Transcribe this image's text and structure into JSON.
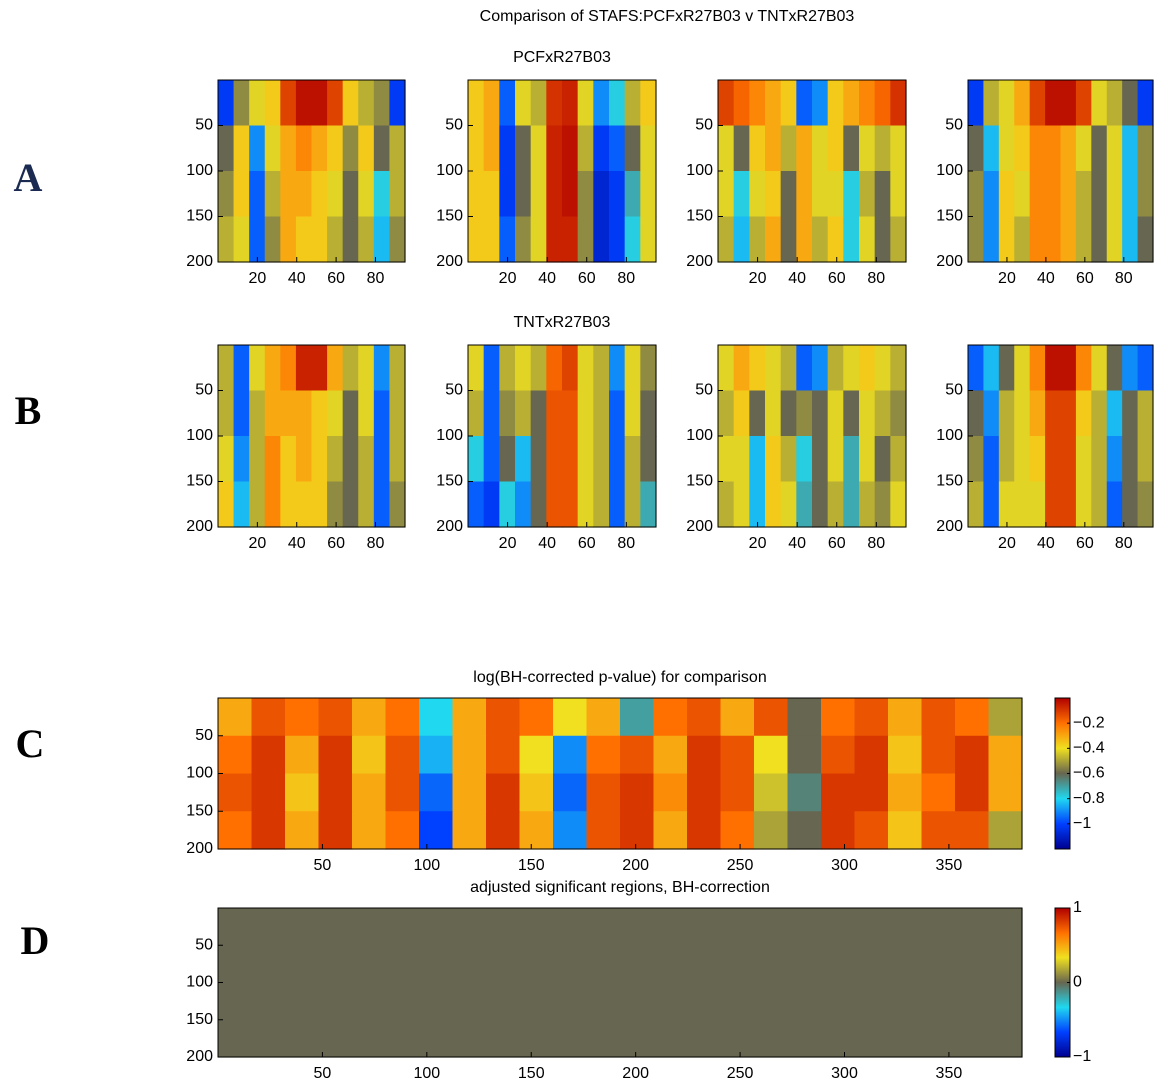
{
  "title": "Comparison of STAFS:PCFxR27B03 v TNTxR27B03",
  "row_titles": [
    "PCFxR27B03",
    "TNTxR27B03"
  ],
  "panel_labels": [
    "A",
    "B",
    "C",
    "D"
  ],
  "colormap": [
    "#00008f",
    "#0040ff",
    "#20d8f0",
    "#676650",
    "#f0e020",
    "#ff7000",
    "#b00000"
  ],
  "chart_data": [
    {
      "type": "heatmap",
      "xlim": [
        0,
        95
      ],
      "ylim": [
        0,
        200
      ],
      "y_inverted": true,
      "clim": [
        -1,
        1
      ],
      "xticks": [
        20,
        40,
        60,
        80
      ],
      "yticks": [
        50,
        100,
        150,
        200
      ],
      "values": [
        [
          -0.7,
          0.1,
          0.3,
          0.4,
          0.8,
          0.95,
          0.95,
          0.8,
          0.4,
          0.2,
          0.1,
          -0.7
        ],
        [
          0,
          0.4,
          -0.5,
          0.3,
          0.5,
          0.6,
          0.5,
          0.4,
          0.1,
          0.4,
          0,
          0.2
        ],
        [
          0.1,
          0.4,
          -0.6,
          0.2,
          0.5,
          0.5,
          0.4,
          0.3,
          0,
          0.3,
          -0.3,
          0.2
        ],
        [
          0.2,
          0.3,
          -0.6,
          0.1,
          0.5,
          0.4,
          0.4,
          0.2,
          0,
          0.2,
          -0.4,
          0.1
        ]
      ]
    },
    {
      "type": "heatmap",
      "xlim": [
        0,
        95
      ],
      "ylim": [
        0,
        200
      ],
      "y_inverted": true,
      "clim": [
        -1,
        1
      ],
      "xticks": [
        20,
        40,
        60,
        80
      ],
      "yticks": [
        50,
        100,
        150,
        200
      ],
      "values": [
        [
          0.4,
          0.5,
          -0.6,
          0.3,
          0.2,
          0.85,
          0.9,
          0.3,
          -0.5,
          -0.3,
          0.2,
          0.4
        ],
        [
          0.4,
          0.5,
          -0.7,
          0,
          0.3,
          0.9,
          0.95,
          0.2,
          -0.7,
          -0.6,
          0,
          0.3
        ],
        [
          0.4,
          0.4,
          -0.7,
          0,
          0.3,
          0.9,
          0.95,
          0.1,
          -0.8,
          -0.7,
          -0.2,
          0.3
        ],
        [
          0.4,
          0.4,
          -0.6,
          0.1,
          0.3,
          0.9,
          0.9,
          0.1,
          -0.8,
          -0.7,
          -0.3,
          0.3
        ]
      ]
    },
    {
      "type": "heatmap",
      "xlim": [
        0,
        95
      ],
      "ylim": [
        0,
        200
      ],
      "y_inverted": true,
      "clim": [
        -1,
        1
      ],
      "xticks": [
        20,
        40,
        60,
        80
      ],
      "yticks": [
        50,
        100,
        150,
        200
      ],
      "values": [
        [
          0.8,
          0.7,
          0.6,
          0.5,
          0.4,
          -0.6,
          -0.5,
          0.4,
          0.5,
          0.6,
          0.7,
          0.85
        ],
        [
          0.3,
          0,
          0.4,
          0.5,
          0.2,
          0.5,
          0.3,
          0.4,
          0,
          0.3,
          0.2,
          0.3
        ],
        [
          0.3,
          -0.3,
          0.3,
          0.4,
          0,
          0.5,
          0.3,
          0.3,
          -0.3,
          0.2,
          0,
          0.3
        ],
        [
          0.2,
          -0.4,
          0.2,
          0.5,
          0,
          0.5,
          0.2,
          0.4,
          -0.3,
          0.3,
          0,
          0.2
        ]
      ]
    },
    {
      "type": "heatmap",
      "xlim": [
        0,
        95
      ],
      "ylim": [
        0,
        200
      ],
      "y_inverted": true,
      "clim": [
        -1,
        1
      ],
      "xticks": [
        20,
        40,
        60,
        80
      ],
      "yticks": [
        50,
        100,
        150,
        200
      ],
      "values": [
        [
          -0.7,
          0.2,
          0.3,
          0.5,
          0.8,
          0.95,
          0.95,
          0.8,
          0.3,
          0.2,
          0,
          -0.7
        ],
        [
          0,
          -0.4,
          0.3,
          0.4,
          0.6,
          0.6,
          0.5,
          0.3,
          0,
          0.3,
          -0.4,
          0.1
        ],
        [
          0.1,
          -0.5,
          0.4,
          0.3,
          0.6,
          0.6,
          0.5,
          0.2,
          0,
          0.3,
          -0.4,
          0.1
        ],
        [
          0.1,
          -0.5,
          0.4,
          0.2,
          0.6,
          0.6,
          0.5,
          0.2,
          0,
          0.3,
          -0.4,
          0
        ]
      ]
    },
    {
      "type": "heatmap",
      "xlim": [
        0,
        95
      ],
      "ylim": [
        0,
        200
      ],
      "y_inverted": true,
      "clim": [
        -1,
        1
      ],
      "xticks": [
        20,
        40,
        60,
        80
      ],
      "yticks": [
        50,
        100,
        150,
        200
      ],
      "values": [
        [
          0.2,
          -0.6,
          0.3,
          0.5,
          0.6,
          0.9,
          0.9,
          0.5,
          0.2,
          0.3,
          -0.5,
          0.2
        ],
        [
          0.2,
          -0.6,
          0.2,
          0.5,
          0.5,
          0.5,
          0.4,
          0.3,
          0,
          0.3,
          -0.6,
          0.2
        ],
        [
          0.3,
          -0.5,
          0.2,
          0.6,
          0.4,
          0.5,
          0.4,
          0.2,
          0,
          0.2,
          -0.6,
          0.2
        ],
        [
          0.4,
          -0.4,
          0.2,
          0.6,
          0.4,
          0.4,
          0.4,
          0.1,
          0,
          0.2,
          -0.6,
          0.1
        ]
      ]
    },
    {
      "type": "heatmap",
      "xlim": [
        0,
        95
      ],
      "ylim": [
        0,
        200
      ],
      "y_inverted": true,
      "clim": [
        -1,
        1
      ],
      "xticks": [
        20,
        40,
        60,
        80
      ],
      "yticks": [
        50,
        100,
        150,
        200
      ],
      "values": [
        [
          0.3,
          -0.6,
          0.2,
          0.3,
          0.2,
          0.7,
          0.8,
          0.3,
          0.2,
          -0.5,
          0.3,
          0.1
        ],
        [
          0.2,
          -0.6,
          0.1,
          0.2,
          0,
          0.75,
          0.75,
          0.3,
          0.2,
          -0.6,
          0.3,
          0
        ],
        [
          -0.3,
          -0.6,
          0,
          -0.4,
          0,
          0.75,
          0.75,
          0.3,
          0.2,
          -0.6,
          0.2,
          0
        ],
        [
          -0.6,
          -0.7,
          -0.3,
          -0.5,
          0,
          0.75,
          0.75,
          0.3,
          0.2,
          -0.6,
          0.2,
          -0.2
        ]
      ]
    },
    {
      "type": "heatmap",
      "xlim": [
        0,
        95
      ],
      "ylim": [
        0,
        200
      ],
      "y_inverted": true,
      "clim": [
        -1,
        1
      ],
      "xticks": [
        20,
        40,
        60,
        80
      ],
      "yticks": [
        50,
        100,
        150,
        200
      ],
      "values": [
        [
          0.3,
          0.5,
          0.4,
          0.3,
          0.2,
          -0.6,
          -0.5,
          0.2,
          0.3,
          0.4,
          0.3,
          0.2
        ],
        [
          0.2,
          0.4,
          0,
          0.3,
          0,
          0.1,
          0,
          0.3,
          0,
          0.3,
          0.2,
          0.1
        ],
        [
          0.3,
          0.3,
          -0.4,
          0.4,
          0.2,
          -0.3,
          0,
          0.3,
          -0.2,
          0.3,
          0,
          0.2
        ],
        [
          0.2,
          0.3,
          -0.4,
          0.4,
          0.3,
          -0.2,
          0,
          0.2,
          -0.2,
          0.2,
          0.1,
          0.3
        ]
      ]
    },
    {
      "type": "heatmap",
      "xlim": [
        0,
        95
      ],
      "ylim": [
        0,
        200
      ],
      "y_inverted": true,
      "clim": [
        -1,
        1
      ],
      "xticks": [
        20,
        40,
        60,
        80
      ],
      "yticks": [
        50,
        100,
        150,
        200
      ],
      "values": [
        [
          -0.6,
          -0.4,
          0,
          0.3,
          0.6,
          0.95,
          0.95,
          0.6,
          0.3,
          0,
          -0.5,
          -0.6
        ],
        [
          0,
          -0.5,
          0.2,
          0.3,
          0.5,
          0.8,
          0.8,
          0.4,
          0.2,
          -0.4,
          0,
          0.2
        ],
        [
          0.1,
          -0.6,
          0.2,
          0.3,
          0.4,
          0.8,
          0.8,
          0.3,
          0.2,
          -0.5,
          0,
          0.2
        ],
        [
          0.2,
          -0.6,
          0.3,
          0.3,
          0.3,
          0.8,
          0.8,
          0.3,
          0.2,
          -0.6,
          0,
          0.1
        ]
      ]
    },
    {
      "type": "heatmap",
      "title": "log(BH-corrected p-value) for comparison",
      "xlim": [
        0,
        385
      ],
      "ylim": [
        0,
        200
      ],
      "y_inverted": true,
      "clim": [
        -1.2,
        0
      ],
      "xticks": [
        50,
        100,
        150,
        200,
        250,
        300,
        350
      ],
      "yticks": [
        50,
        100,
        150,
        200
      ],
      "colorbar_ticks": [
        {
          "value": -0.2,
          "label": "−0.2"
        },
        {
          "value": -0.4,
          "label": "−0.4"
        },
        {
          "value": -0.6,
          "label": "−0.6"
        },
        {
          "value": -0.8,
          "label": "−0.8"
        },
        {
          "value": -1,
          "label": "−1"
        }
      ],
      "values": [
        [
          -0.3,
          -0.15,
          -0.2,
          -0.15,
          -0.3,
          -0.2,
          -0.8,
          -0.3,
          -0.15,
          -0.2,
          -0.4,
          -0.3,
          -0.7,
          -0.2,
          -0.15,
          -0.3,
          -0.15,
          -0.6,
          -0.2,
          -0.15,
          -0.3,
          -0.15,
          -0.2,
          -0.5
        ],
        [
          -0.2,
          -0.1,
          -0.3,
          -0.1,
          -0.35,
          -0.15,
          -0.85,
          -0.3,
          -0.15,
          -0.4,
          -0.9,
          -0.2,
          -0.15,
          -0.3,
          -0.1,
          -0.15,
          -0.4,
          -0.6,
          -0.15,
          -0.1,
          -0.35,
          -0.15,
          -0.1,
          -0.3
        ],
        [
          -0.15,
          -0.1,
          -0.35,
          -0.1,
          -0.3,
          -0.15,
          -0.95,
          -0.3,
          -0.1,
          -0.35,
          -0.95,
          -0.15,
          -0.1,
          -0.25,
          -0.1,
          -0.15,
          -0.45,
          -0.65,
          -0.1,
          -0.1,
          -0.3,
          -0.2,
          -0.1,
          -0.3
        ],
        [
          -0.2,
          -0.1,
          -0.3,
          -0.1,
          -0.3,
          -0.2,
          -1.0,
          -0.3,
          -0.1,
          -0.3,
          -0.9,
          -0.15,
          -0.1,
          -0.3,
          -0.1,
          -0.2,
          -0.5,
          -0.6,
          -0.1,
          -0.15,
          -0.35,
          -0.15,
          -0.15,
          -0.5
        ]
      ]
    },
    {
      "type": "heatmap",
      "title": "adjusted significant regions, BH-correction",
      "xlim": [
        0,
        385
      ],
      "ylim": [
        0,
        200
      ],
      "y_inverted": true,
      "clim": [
        -1,
        1
      ],
      "xticks": [
        50,
        100,
        150,
        200,
        250,
        300,
        350
      ],
      "yticks": [
        50,
        100,
        150,
        200
      ],
      "colorbar_ticks": [
        1,
        0,
        {
          "value": -1,
          "label": "−1"
        }
      ],
      "values": [
        [
          0
        ]
      ]
    }
  ]
}
